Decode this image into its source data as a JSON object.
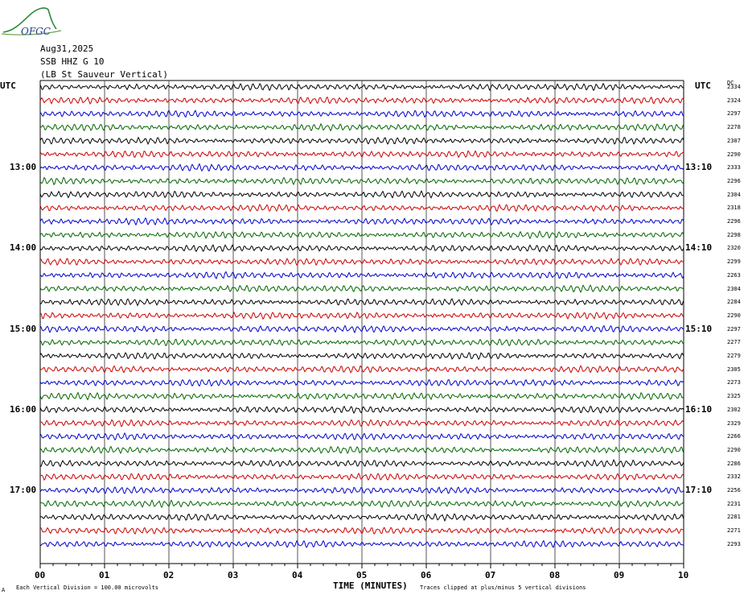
{
  "header": {
    "date": "Aug31,2025",
    "station": "SSB HHZ G 10",
    "location": "(LB  St Sauveur Vertical)",
    "logo_text": "OFGC"
  },
  "axis": {
    "left_label": "UTC",
    "right_label": "UTC",
    "dc_label": "DC",
    "xlabel": "TIME (MINUTES)",
    "footer_left": "Each Vertical Division =  100.00 microvolts",
    "footer_right": "Traces clipped at plus/minus 5 vertical divisions",
    "footer_mark": "A"
  },
  "chart_data": {
    "type": "line",
    "x_ticks": [
      "00",
      "01",
      "02",
      "03",
      "04",
      "05",
      "06",
      "07",
      "08",
      "09",
      "10"
    ],
    "xlim": [
      0,
      10
    ],
    "left_hour_labels": [
      {
        "row": 6,
        "label": "13:00"
      },
      {
        "row": 12,
        "label": "14:00"
      },
      {
        "row": 18,
        "label": "15:00"
      },
      {
        "row": 24,
        "label": "16:00"
      },
      {
        "row": 30,
        "label": "17:00"
      }
    ],
    "right_hour_labels": [
      {
        "row": 6,
        "label": "13:10"
      },
      {
        "row": 12,
        "label": "14:10"
      },
      {
        "row": 18,
        "label": "15:10"
      },
      {
        "row": 24,
        "label": "16:10"
      },
      {
        "row": 30,
        "label": "17:10"
      }
    ],
    "trace_colors": [
      "#000000",
      "#cc0000",
      "#0000cc",
      "#006600"
    ],
    "dc_offsets": [
      "2334",
      "2324",
      "2297",
      "2278",
      "2307",
      "2290",
      "2333",
      "2296",
      "2304",
      "2318",
      "2296",
      "2298",
      "2320",
      "2299",
      "2263",
      "2304",
      "2284",
      "2290",
      "2297",
      "2277",
      "2279",
      "2305",
      "2273",
      "2325",
      "2302",
      "2329",
      "2266",
      "2290",
      "2286",
      "2332",
      "2256",
      "2231",
      "2281",
      "2271",
      "2293"
    ],
    "grid": true
  }
}
